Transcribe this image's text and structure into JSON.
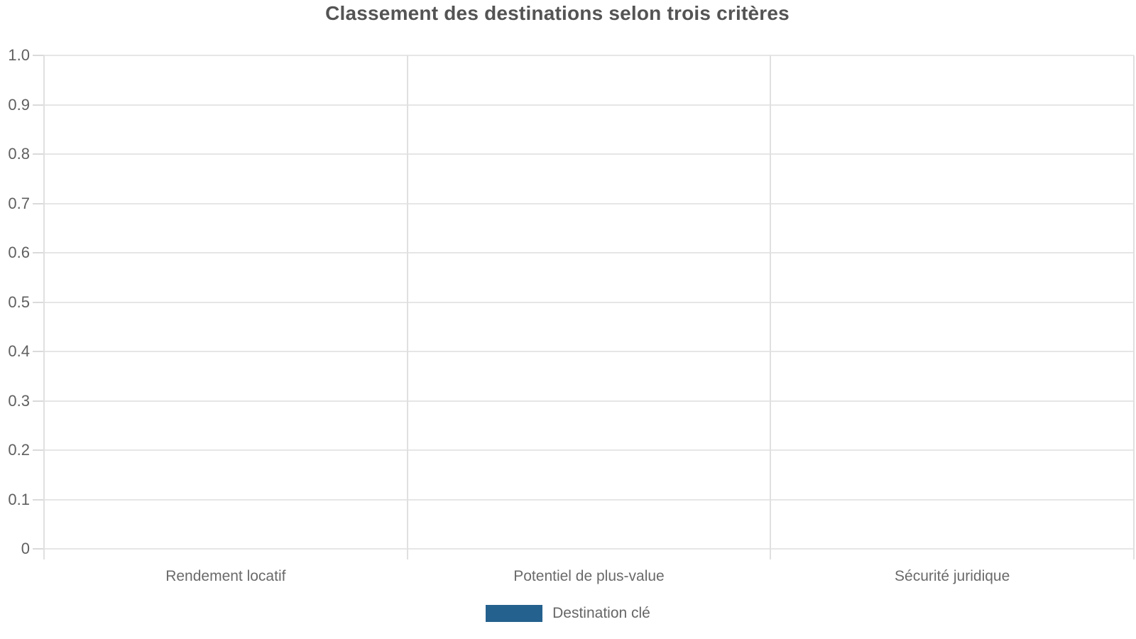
{
  "chart_data": {
    "type": "bar",
    "title": "Classement des destinations selon trois critères",
    "categories": [
      "Rendement locatif",
      "Potentiel de plus-value",
      "Sécurité juridique"
    ],
    "series": [
      {
        "name": "Destination clé",
        "color": "#25618e",
        "values": [
          0,
          0,
          0
        ]
      }
    ],
    "xlabel": "",
    "ylabel": "",
    "ylim": [
      0,
      1
    ],
    "ytick_labels": [
      "1.0",
      "0.9",
      "0.8",
      "0.7",
      "0.6",
      "0.5",
      "0.4",
      "0.3",
      "0.2",
      "0.1",
      "0"
    ],
    "grid": true,
    "legend_position": "bottom",
    "colors": {
      "accent": "#25618e",
      "title_text": "#545454",
      "axis_text": "#5f5f5f",
      "category_text": "#6a6a6a",
      "gridline": "#e6e6e6",
      "axis_line": "#dadada"
    }
  }
}
